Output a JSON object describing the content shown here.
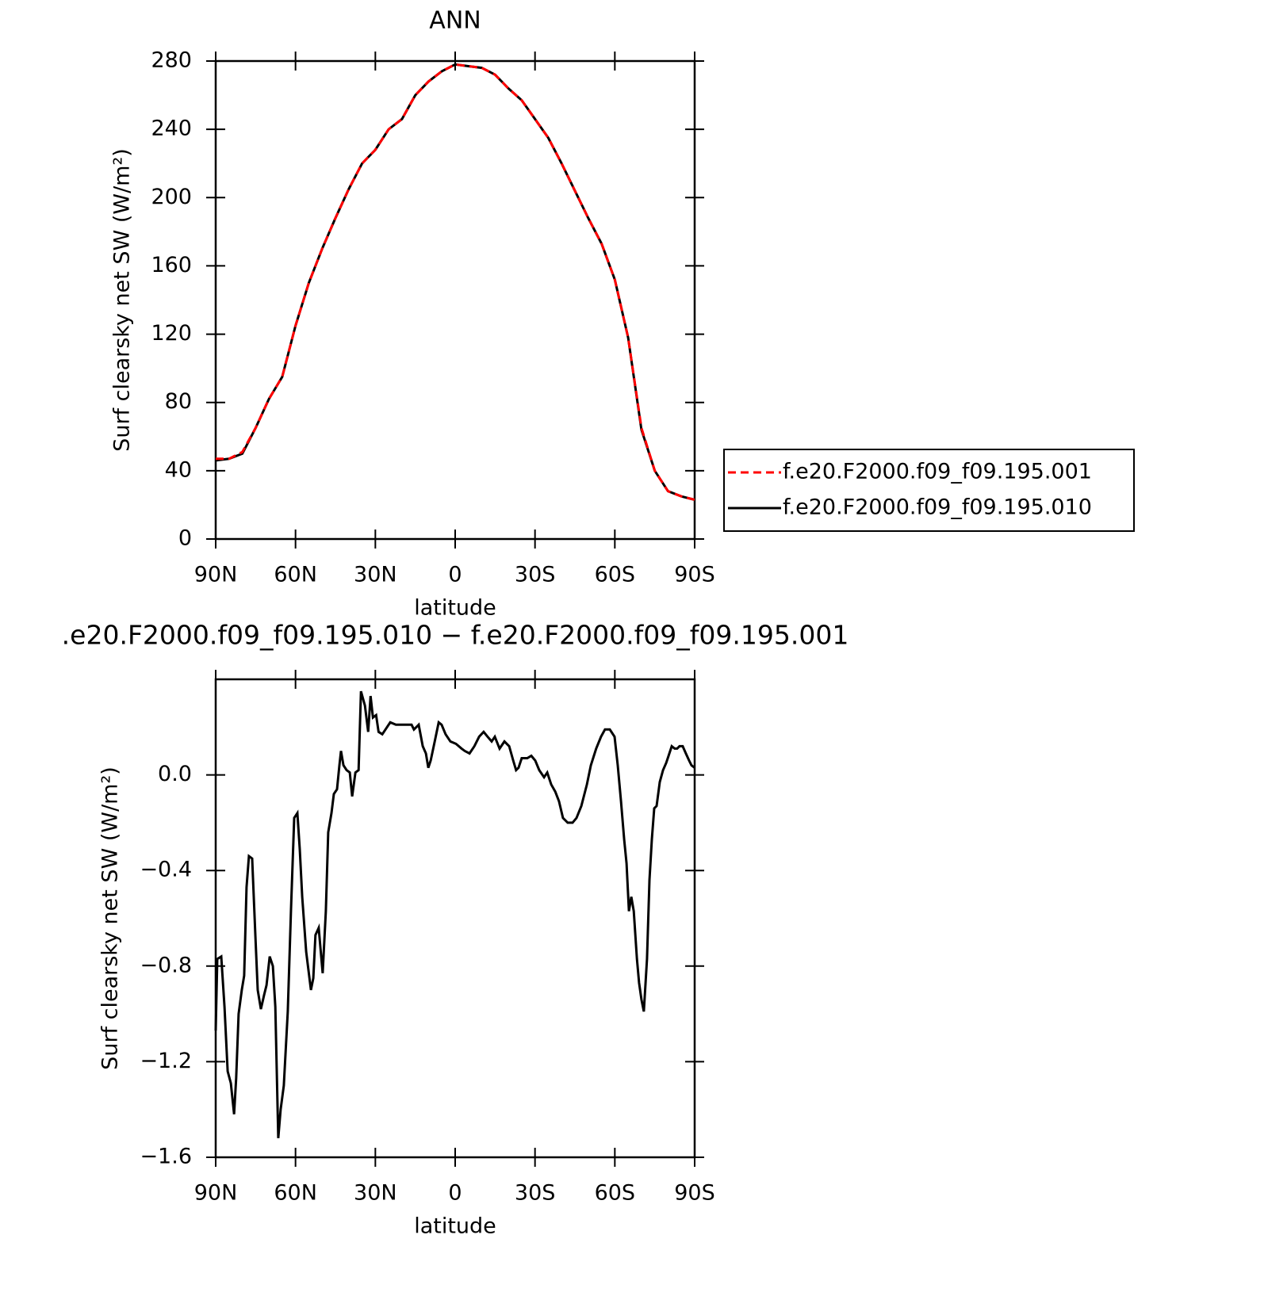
{
  "chart_data": [
    {
      "type": "line",
      "title": "ANN",
      "xlabel": "latitude",
      "ylabel": "Surf clearsky net SW (W/m²)",
      "x": [
        90,
        85,
        80,
        75,
        70,
        65,
        60,
        55,
        50,
        45,
        40,
        35,
        30,
        25,
        20,
        15,
        10,
        5,
        0,
        -5,
        -10,
        -15,
        -20,
        -25,
        -30,
        -35,
        -40,
        -45,
        -50,
        -55,
        -60,
        -65,
        -70,
        -75,
        -80,
        -85,
        -90
      ],
      "series": [
        {
          "name": "f.e20.F2000.f09_f09.195.010",
          "color": "#000000",
          "dash": false,
          "values": [
            46,
            47,
            50,
            65,
            82,
            95,
            125,
            150,
            170,
            188,
            205,
            220,
            228,
            240,
            246,
            260,
            268,
            274,
            278,
            277,
            276,
            272,
            264,
            257,
            246,
            235,
            220,
            204,
            188,
            173,
            152,
            118,
            64,
            40,
            28,
            25,
            23
          ]
        },
        {
          "name": "f.e20.F2000.f09_f09.195.001",
          "color": "#ff0000",
          "dash": true,
          "values": [
            47,
            47,
            51,
            65,
            82,
            95,
            125,
            150,
            170,
            188,
            205,
            220,
            228,
            240,
            246,
            260,
            268,
            274,
            278,
            277,
            276,
            272,
            264,
            257,
            246,
            235,
            220,
            204,
            188,
            173,
            152,
            118,
            65,
            40,
            28,
            25,
            23
          ]
        }
      ],
      "xlim": [
        90,
        -90
      ],
      "xticks": [
        {
          "value": 90,
          "label": "90N"
        },
        {
          "value": 60,
          "label": "60N"
        },
        {
          "value": 30,
          "label": "30N"
        },
        0,
        {
          "value": -30,
          "label": "30S"
        },
        {
          "value": -60,
          "label": "60S"
        },
        {
          "value": -90,
          "label": "90S"
        }
      ],
      "ylim": [
        0,
        280
      ],
      "yticks": [
        0,
        40,
        80,
        120,
        160,
        200,
        240,
        280
      ],
      "legend": "right"
    },
    {
      "type": "line",
      "title": ".e20.F2000.f09_f09.195.010 − f.e20.F2000.f09_f09.195.001",
      "xlabel": "latitude",
      "ylabel": "Surf clearsky net SW (W/m²)",
      "color": "#000000",
      "x": [
        90,
        89.4,
        87.9,
        86.7,
        85.5,
        84.3,
        83.1,
        82.3,
        81.4,
        80.2,
        79.3,
        78.4,
        77.5,
        76.3,
        75.1,
        74.2,
        73.0,
        71.8,
        70.9,
        69.7,
        68.5,
        67.6,
        66.5,
        65.6,
        64.4,
        62.9,
        61.7,
        60.5,
        59.3,
        58.4,
        57.5,
        56.0,
        54.2,
        53.3,
        52.5,
        51.3,
        49.8,
        48.6,
        47.7,
        46.5,
        45.6,
        44.4,
        43.5,
        42.9,
        42.0,
        40.8,
        39.6,
        38.7,
        37.5,
        36.3,
        35.4,
        33.9,
        32.7,
        31.8,
        30.9,
        29.7,
        28.8,
        27.4,
        26.2,
        24.4,
        22.3,
        20.3,
        18.5,
        16.4,
        15.5,
        13.7,
        12.2,
        11.0,
        10.1,
        9.2,
        7.7,
        6.2,
        5.1,
        3.6,
        1.8,
        -0.3,
        -2.4,
        -3.6,
        -5.4,
        -7.2,
        -9.0,
        -10.7,
        -12.2,
        -13.7,
        -14.9,
        -16.7,
        -18.5,
        -20.3,
        -21.8,
        -22.9,
        -23.8,
        -25.0,
        -26.2,
        -27.1,
        -28.6,
        -30.1,
        -31.6,
        -33.4,
        -34.6,
        -36.1,
        -37.6,
        -39.0,
        -40.5,
        -42.3,
        -44.1,
        -45.6,
        -47.4,
        -49.5,
        -51.0,
        -53.0,
        -54.8,
        -56.3,
        -58.1,
        -59.9,
        -61.1,
        -62.3,
        -63.5,
        -64.4,
        -65.3,
        -66.2,
        -67.1,
        -68.3,
        -69.1,
        -70.0,
        -70.9,
        -72.1,
        -73.0,
        -73.9,
        -74.8,
        -75.7,
        -76.9,
        -78.1,
        -79.3,
        -80.2,
        -81.4,
        -82.5,
        -83.4,
        -84.3,
        -85.5,
        -86.7,
        -87.9,
        -88.8,
        -90
      ],
      "values": [
        -1.07,
        -0.77,
        -0.76,
        -0.97,
        -1.24,
        -1.29,
        -1.42,
        -1.27,
        -1.0,
        -0.9,
        -0.84,
        -0.47,
        -0.34,
        -0.35,
        -0.67,
        -0.9,
        -0.98,
        -0.92,
        -0.88,
        -0.76,
        -0.8,
        -0.97,
        -1.52,
        -1.4,
        -1.3,
        -0.99,
        -0.56,
        -0.18,
        -0.16,
        -0.31,
        -0.51,
        -0.74,
        -0.9,
        -0.85,
        -0.67,
        -0.64,
        -0.83,
        -0.57,
        -0.24,
        -0.16,
        -0.08,
        -0.06,
        0.04,
        0.1,
        0.04,
        0.02,
        0.01,
        -0.09,
        0.01,
        0.02,
        0.35,
        0.29,
        0.18,
        0.33,
        0.24,
        0.25,
        0.18,
        0.17,
        0.19,
        0.22,
        0.21,
        0.21,
        0.21,
        0.21,
        0.19,
        0.21,
        0.12,
        0.09,
        0.03,
        0.06,
        0.14,
        0.22,
        0.21,
        0.17,
        0.14,
        0.13,
        0.11,
        0.1,
        0.09,
        0.12,
        0.16,
        0.18,
        0.16,
        0.14,
        0.16,
        0.11,
        0.14,
        0.12,
        0.06,
        0.02,
        0.03,
        0.07,
        0.07,
        0.07,
        0.08,
        0.06,
        0.02,
        -0.01,
        0.01,
        -0.04,
        -0.07,
        -0.11,
        -0.18,
        -0.2,
        -0.2,
        -0.18,
        -0.13,
        -0.04,
        0.04,
        0.11,
        0.16,
        0.19,
        0.19,
        0.16,
        0.04,
        -0.11,
        -0.27,
        -0.37,
        -0.57,
        -0.51,
        -0.57,
        -0.77,
        -0.87,
        -0.94,
        -0.99,
        -0.77,
        -0.44,
        -0.27,
        -0.14,
        -0.13,
        -0.03,
        0.02,
        0.05,
        0.08,
        0.12,
        0.11,
        0.11,
        0.12,
        0.12,
        0.09,
        0.06,
        0.04,
        0.03
      ],
      "xlim": [
        90,
        -90
      ],
      "xticks": [
        {
          "value": 90,
          "label": "90N"
        },
        {
          "value": 60,
          "label": "60N"
        },
        {
          "value": 30,
          "label": "30N"
        },
        0,
        {
          "value": -30,
          "label": "30S"
        },
        {
          "value": -60,
          "label": "60S"
        },
        {
          "value": -90,
          "label": "90S"
        }
      ],
      "ylim": [
        -1.6,
        0.4
      ],
      "yticks": [
        {
          "value": -1.6,
          "label": "−1.6"
        },
        {
          "value": -1.2,
          "label": "−1.2"
        },
        {
          "value": -0.8,
          "label": "−0.8"
        },
        {
          "value": -0.4,
          "label": "−0.4"
        },
        {
          "value": 0,
          "label": "0.0"
        }
      ]
    }
  ]
}
